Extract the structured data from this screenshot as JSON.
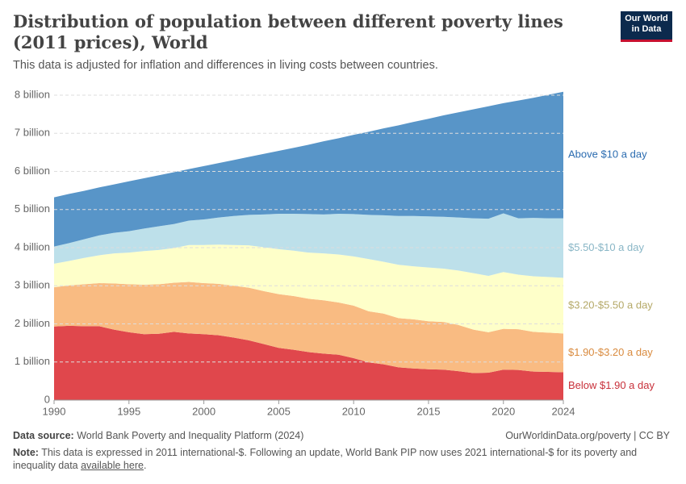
{
  "chart_data": {
    "type": "stacked_area",
    "title": "Distribution of population between different poverty lines (2011 prices), World",
    "subtitle": "This data is adjusted for inflation and differences in living costs between countries.",
    "x": [
      1990,
      1991,
      1992,
      1993,
      1994,
      1995,
      1996,
      1997,
      1998,
      1999,
      2000,
      2001,
      2002,
      2003,
      2004,
      2005,
      2006,
      2007,
      2008,
      2009,
      2010,
      2011,
      2012,
      2013,
      2014,
      2015,
      2016,
      2017,
      2018,
      2019,
      2020,
      2021,
      2022,
      2023,
      2024
    ],
    "xlim": [
      1990,
      2024
    ],
    "xticks": [
      1990,
      1995,
      2000,
      2005,
      2010,
      2015,
      2020,
      2024
    ],
    "ylim": [
      0,
      8
    ],
    "yticks": [
      0,
      {
        "value": 1,
        "label": "1 billion"
      },
      {
        "value": 2,
        "label": "2 billion"
      },
      {
        "value": 3,
        "label": "3 billion"
      },
      {
        "value": 4,
        "label": "4 billion"
      },
      {
        "value": 5,
        "label": "5 billion"
      },
      {
        "value": 6,
        "label": "6 billion"
      },
      {
        "value": 7,
        "label": "7 billion"
      },
      {
        "value": 8,
        "label": "8 billion"
      }
    ],
    "grid": true,
    "series": [
      {
        "name": "Below $1.90 a day",
        "color": "#e0474c",
        "label_color": "#c8303a",
        "values": [
          1.93,
          1.95,
          1.94,
          1.94,
          1.85,
          1.78,
          1.73,
          1.74,
          1.79,
          1.75,
          1.73,
          1.7,
          1.64,
          1.57,
          1.47,
          1.37,
          1.32,
          1.26,
          1.22,
          1.19,
          1.1,
          0.99,
          0.94,
          0.86,
          0.83,
          0.81,
          0.8,
          0.76,
          0.71,
          0.72,
          0.8,
          0.79,
          0.75,
          0.74,
          0.73
        ]
      },
      {
        "name": "$1.90-$3.20 a day",
        "color": "#f9bb82",
        "label_color": "#d98b3f",
        "values": [
          1.03,
          1.06,
          1.1,
          1.13,
          1.21,
          1.26,
          1.3,
          1.3,
          1.29,
          1.35,
          1.34,
          1.35,
          1.36,
          1.38,
          1.39,
          1.41,
          1.41,
          1.4,
          1.4,
          1.37,
          1.38,
          1.34,
          1.33,
          1.29,
          1.29,
          1.26,
          1.25,
          1.21,
          1.14,
          1.06,
          1.07,
          1.07,
          1.04,
          1.03,
          1.02
        ]
      },
      {
        "name": "$3.20-$5.50 a day",
        "color": "#feffc9",
        "label_color": "#b5a968",
        "values": [
          0.62,
          0.64,
          0.69,
          0.73,
          0.79,
          0.83,
          0.88,
          0.9,
          0.91,
          0.97,
          1.0,
          1.03,
          1.07,
          1.11,
          1.15,
          1.18,
          1.19,
          1.21,
          1.23,
          1.26,
          1.29,
          1.37,
          1.36,
          1.4,
          1.39,
          1.41,
          1.4,
          1.43,
          1.48,
          1.48,
          1.49,
          1.43,
          1.46,
          1.46,
          1.46
        ]
      },
      {
        "name": "$5.50-$10 a day",
        "color": "#bde0ea",
        "label_color": "#89b6c6",
        "values": [
          0.45,
          0.47,
          0.49,
          0.52,
          0.54,
          0.56,
          0.59,
          0.62,
          0.63,
          0.64,
          0.67,
          0.71,
          0.76,
          0.8,
          0.86,
          0.93,
          0.97,
          1.01,
          1.02,
          1.07,
          1.11,
          1.16,
          1.22,
          1.28,
          1.32,
          1.34,
          1.36,
          1.39,
          1.44,
          1.5,
          1.54,
          1.48,
          1.53,
          1.54,
          1.56
        ]
      },
      {
        "name": "Above $10 a day",
        "color": "#5895c8",
        "label_color": "#2b6cb0",
        "values": [
          1.29,
          1.29,
          1.27,
          1.26,
          1.27,
          1.31,
          1.32,
          1.34,
          1.36,
          1.35,
          1.4,
          1.43,
          1.47,
          1.52,
          1.59,
          1.65,
          1.73,
          1.82,
          1.92,
          1.98,
          2.08,
          2.18,
          2.28,
          2.38,
          2.47,
          2.56,
          2.66,
          2.76,
          2.86,
          2.95,
          2.89,
          3.09,
          3.15,
          3.24,
          3.32
        ]
      }
    ]
  },
  "logo": {
    "line1": "Our World",
    "line2": "in Data"
  },
  "footer": {
    "source_label": "Data source:",
    "source": "World Bank Poverty and Inequality Platform (2024)",
    "url": "OurWorldinData.org/poverty | CC BY",
    "note_label": "Note:",
    "note": "This data is expressed in 2011 international-$. Following an update, World Bank PIP now uses 2021 international-$ for its poverty and inequality data",
    "note_link": "available here",
    "note_end": "."
  }
}
